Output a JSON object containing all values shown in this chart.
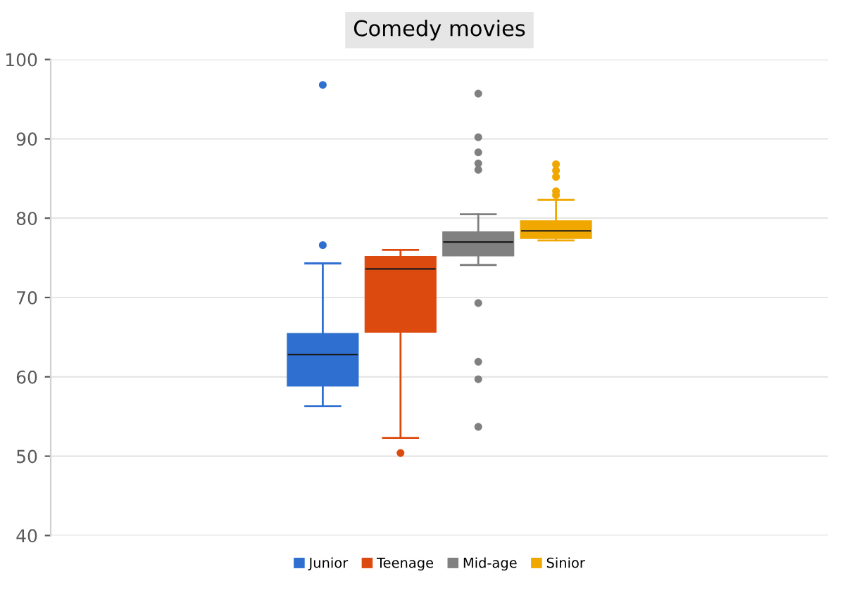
{
  "chart_data": {
    "type": "box",
    "title": "Comedy movies",
    "categories": [
      null
    ],
    "ylim": [
      40,
      100
    ],
    "yticks": [
      40,
      50,
      60,
      70,
      80,
      90,
      100
    ],
    "grid": "y",
    "legend": "bottom",
    "tick_labels": "y",
    "series": [
      {
        "name": "Junior",
        "color": "#2e6fd0",
        "boxes": [
          {
            "low": 56.3,
            "q1": 58.9,
            "median": 62.8,
            "q3": 65.4,
            "high": 74.3,
            "outliers": [
              76.6,
              96.8
            ]
          }
        ]
      },
      {
        "name": "Teenage",
        "color": "#dd4a10",
        "boxes": [
          {
            "low": 52.3,
            "q1": 65.7,
            "median": 73.6,
            "q3": 75.1,
            "high": 76.0,
            "outliers": [
              50.4
            ]
          }
        ]
      },
      {
        "name": "Mid-age",
        "color": "#808080",
        "boxes": [
          {
            "low": 74.1,
            "q1": 75.3,
            "median": 77.0,
            "q3": 78.2,
            "high": 80.5,
            "outliers": [
              95.7,
              90.2,
              88.3,
              86.9,
              86.1,
              69.3,
              61.9,
              59.7,
              53.7
            ]
          }
        ]
      },
      {
        "name": "Sinior",
        "color": "#f0a800",
        "boxes": [
          {
            "low": 77.2,
            "q1": 77.5,
            "median": 78.4,
            "q3": 79.6,
            "high": 82.3,
            "outliers": [
              86.8,
              86.0,
              85.2,
              83.4,
              82.9
            ]
          }
        ]
      }
    ]
  }
}
